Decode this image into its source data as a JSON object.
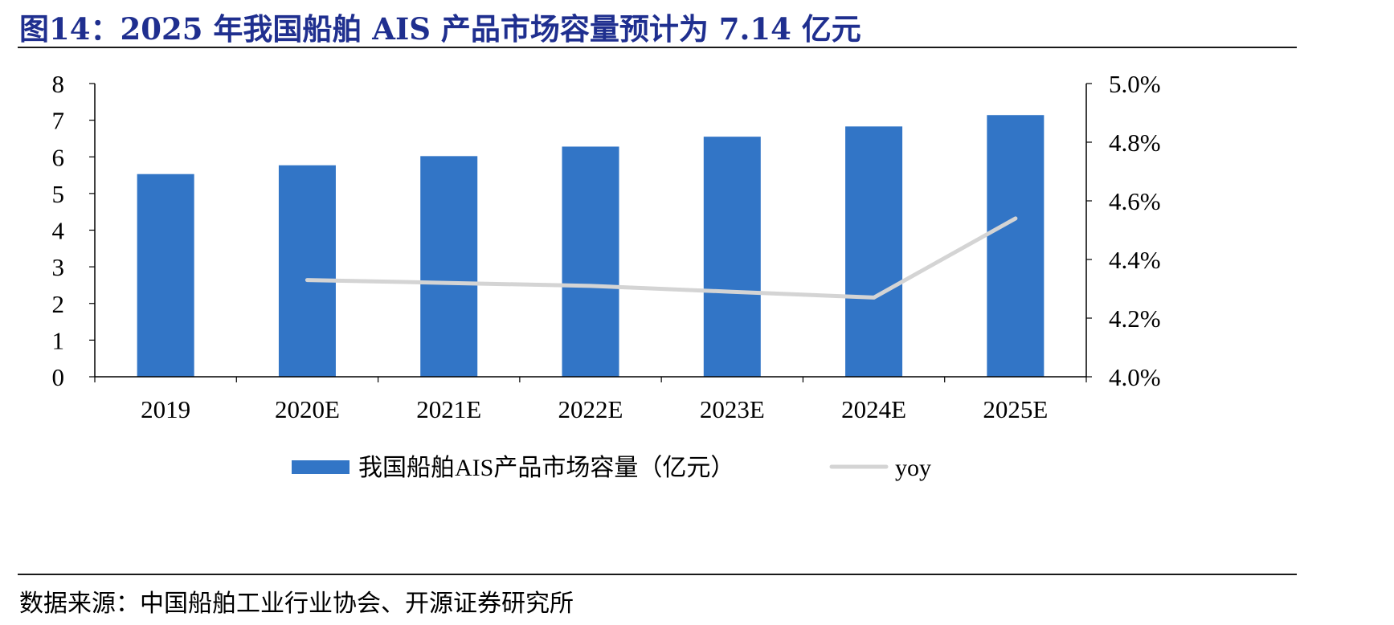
{
  "title": "图14：2025 年我国船舶 AIS 产品市场容量预计为 7.14 亿元",
  "source": "数据来源：中国船舶工业行业协会、开源证券研究所",
  "colors": {
    "bar": "#3275C6",
    "line": "#D4D4D4",
    "title": "#1F2F8F"
  },
  "chart_data": {
    "type": "bar",
    "title": "图14：2025 年我国船舶 AIS 产品市场容量预计为 7.14 亿元",
    "categories": [
      "2019",
      "2020E",
      "2021E",
      "2022E",
      "2023E",
      "2024E",
      "2025E"
    ],
    "series": [
      {
        "name": "我国船舶AIS产品市场容量（亿元）",
        "type": "bar",
        "axis": "left",
        "values": [
          5.53,
          5.77,
          6.02,
          6.28,
          6.55,
          6.83,
          7.14
        ]
      },
      {
        "name": "yoy",
        "type": "line",
        "axis": "right",
        "values": [
          null,
          0.0433,
          0.0432,
          0.0431,
          0.0429,
          0.0427,
          0.0454
        ]
      }
    ],
    "y_left": {
      "lim": [
        0,
        8
      ],
      "ticks": [
        "0",
        "1",
        "2",
        "3",
        "4",
        "5",
        "6",
        "7",
        "8"
      ]
    },
    "y_right": {
      "lim": [
        0.04,
        0.05
      ],
      "ticks": [
        "4.0%",
        "4.2%",
        "4.4%",
        "4.6%",
        "4.8%",
        "5.0%"
      ]
    },
    "grid": false,
    "legend": "bottom-center"
  }
}
